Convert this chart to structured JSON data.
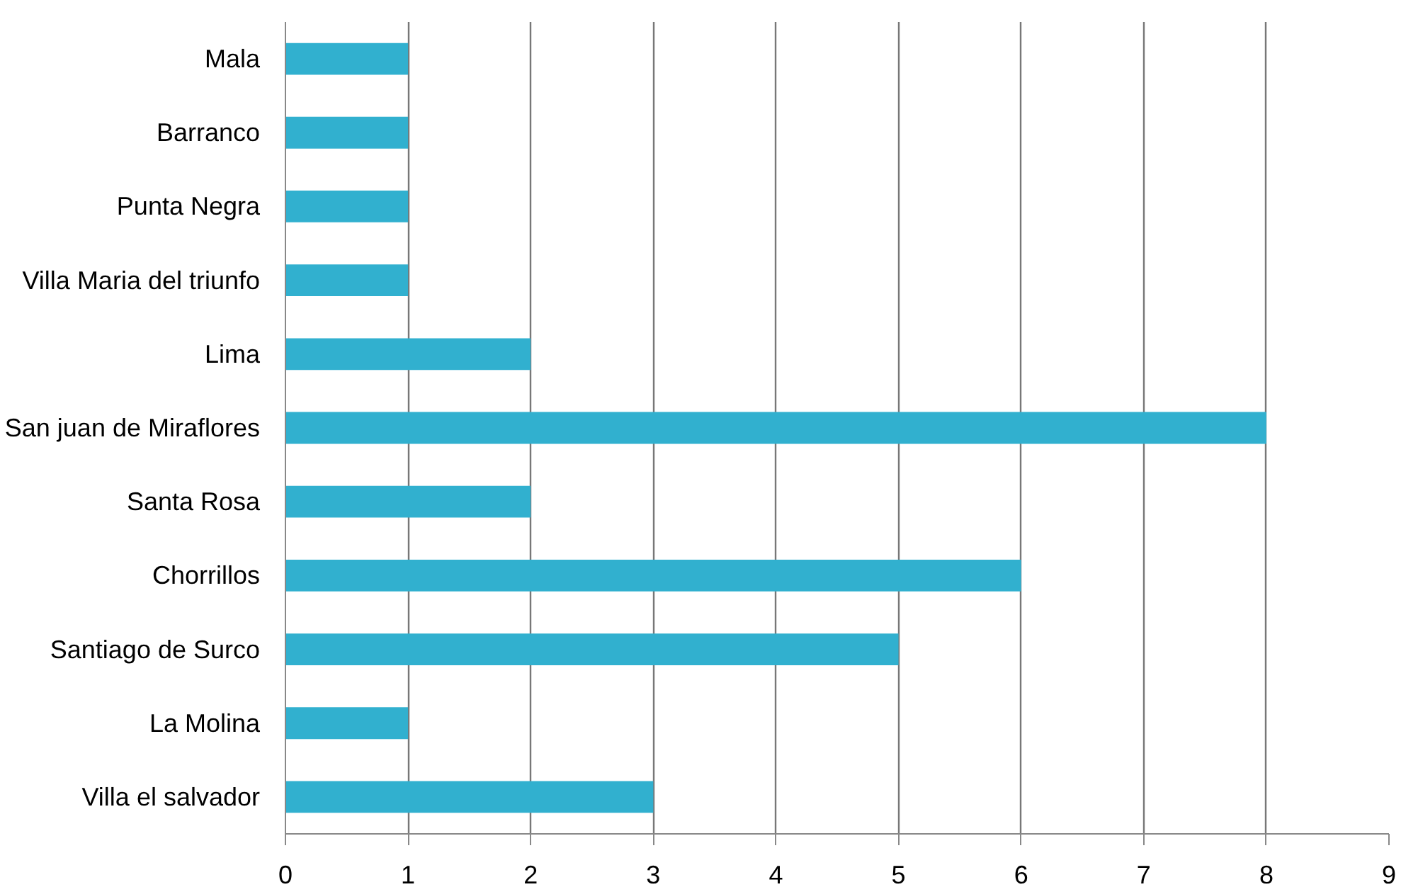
{
  "chart_data": {
    "type": "bar",
    "orientation": "horizontal",
    "categories": [
      "Mala",
      "Barranco",
      "Punta Negra",
      "Villa Maria del triunfo",
      "Lima",
      "San juan de Miraflores",
      "Santa Rosa",
      "Chorrillos",
      "Santiago de Surco",
      "La Molina",
      "Villa el salvador"
    ],
    "values": [
      1,
      1,
      1,
      1,
      2,
      8,
      2,
      6,
      5,
      1,
      3
    ],
    "color": "#31b0cf",
    "xlim": [
      0,
      9
    ],
    "xticks": [
      0,
      1,
      2,
      3,
      4,
      5,
      6,
      7,
      8,
      9
    ],
    "grid": "x"
  }
}
